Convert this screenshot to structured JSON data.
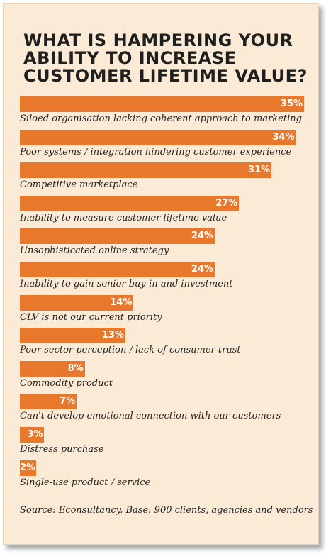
{
  "title_lines": [
    "WHAT IS HAMPERING YOUR",
    "ABILITY TO INCREASE",
    "CUSTOMER LIFETIME VALUE?"
  ],
  "source": "Source: Econsultancy. Base: 900 clients, agencies and vendors",
  "colors": {
    "bar": "#e8782c",
    "background": "#fbebd6"
  },
  "chart_data": {
    "type": "bar",
    "orientation": "horizontal",
    "title": "WHAT IS HAMPERING YOUR ABILITY TO INCREASE CUSTOMER LIFETIME VALUE?",
    "xlim": [
      0,
      35
    ],
    "grid": false,
    "categories": [
      "Siloed organisation lacking coherent approach to marketing",
      "Poor systems / integration hindering customer experience",
      "Competitive marketplace",
      "Inability to measure customer lifetime value",
      "Unsophisticated online strategy",
      "Inability to gain senior buy-in and investment",
      "CLV is not our current priority",
      "Poor sector perception / lack of consumer trust",
      "Commodity product",
      "Can't develop emotional connection with our customers",
      "Distress purchase",
      "Single-use product / service"
    ],
    "values": [
      35,
      34,
      31,
      27,
      24,
      24,
      14,
      13,
      8,
      7,
      3,
      2
    ],
    "value_labels": [
      "35%",
      "34%",
      "31%",
      "27%",
      "24%",
      "24%",
      "14%",
      "13%",
      "8%",
      "7%",
      "3%",
      "2%"
    ]
  }
}
